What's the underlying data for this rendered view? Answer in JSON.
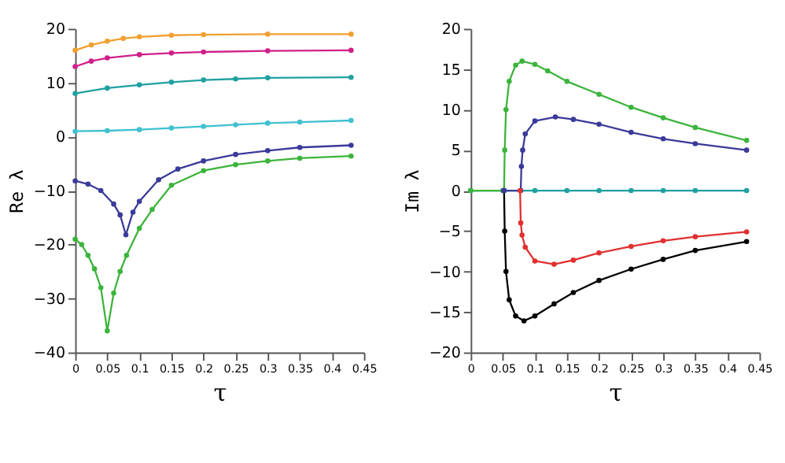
{
  "chart_data": [
    {
      "type": "line",
      "xlabel": "τ",
      "ylabel": "Re λ",
      "xlim": [
        0,
        0.45
      ],
      "ylim": [
        -40,
        20
      ],
      "xticks": [
        0,
        0.05,
        0.1,
        0.15,
        0.2,
        0.25,
        0.3,
        0.35,
        0.4,
        0.45
      ],
      "yticks": [
        -40,
        -30,
        -20,
        -10,
        0,
        10,
        20
      ],
      "grid": false,
      "marker": "circle",
      "line_style": "solid",
      "series": [
        {
          "color": "#f0a030",
          "x": [
            0,
            0.025,
            0.05,
            0.075,
            0.1,
            0.15,
            0.2,
            0.3,
            0.43
          ],
          "values": [
            16,
            17,
            17.7,
            18.2,
            18.5,
            18.8,
            18.9,
            19,
            19
          ]
        },
        {
          "color": "#d0208a",
          "x": [
            0,
            0.025,
            0.05,
            0.1,
            0.15,
            0.2,
            0.3,
            0.43
          ],
          "values": [
            13,
            14,
            14.6,
            15.2,
            15.5,
            15.7,
            15.9,
            16
          ]
        },
        {
          "color": "#20a0a0",
          "x": [
            0,
            0.05,
            0.1,
            0.15,
            0.2,
            0.25,
            0.3,
            0.43
          ],
          "values": [
            8,
            9,
            9.6,
            10.1,
            10.5,
            10.7,
            10.9,
            11
          ]
        },
        {
          "color": "#40c0d0",
          "x": [
            0,
            0.05,
            0.1,
            0.15,
            0.2,
            0.25,
            0.3,
            0.35,
            0.43
          ],
          "values": [
            1,
            1.1,
            1.3,
            1.6,
            1.9,
            2.2,
            2.5,
            2.7,
            3
          ]
        },
        {
          "color": "#3a3a9a",
          "x": [
            0,
            0.02,
            0.04,
            0.06,
            0.07,
            0.079,
            0.09,
            0.1,
            0.13,
            0.16,
            0.2,
            0.25,
            0.3,
            0.35,
            0.43
          ],
          "values": [
            -8.2,
            -8.8,
            -10,
            -12.5,
            -14.5,
            -18.2,
            -14,
            -12,
            -8,
            -6,
            -4.5,
            -3.3,
            -2.6,
            -2,
            -1.6
          ]
        },
        {
          "color": "#3cb43c",
          "x": [
            0,
            0.01,
            0.02,
            0.03,
            0.04,
            0.05,
            0.06,
            0.07,
            0.08,
            0.1,
            0.12,
            0.15,
            0.2,
            0.25,
            0.3,
            0.35,
            0.43
          ],
          "values": [
            -19,
            -20,
            -22,
            -24.5,
            -28,
            -36,
            -29,
            -25,
            -22,
            -17,
            -13.5,
            -9,
            -6.3,
            -5.2,
            -4.5,
            -4,
            -3.6
          ]
        }
      ]
    },
    {
      "type": "line",
      "xlabel": "τ",
      "ylabel": "Im λ",
      "xlim": [
        0,
        0.45
      ],
      "ylim": [
        -20,
        20
      ],
      "xticks": [
        0,
        0.05,
        0.1,
        0.15,
        0.2,
        0.25,
        0.3,
        0.35,
        0.4,
        0.45
      ],
      "yticks": [
        -20,
        -15,
        -10,
        -5,
        0,
        5,
        10,
        15,
        20
      ],
      "grid": false,
      "marker": "circle",
      "line_style": "solid",
      "series": [
        {
          "color": "#20a0a0",
          "x": [
            0,
            0.05,
            0.1,
            0.15,
            0.2,
            0.25,
            0.3,
            0.35,
            0.43
          ],
          "values": [
            0,
            0,
            0,
            0,
            0,
            0,
            0,
            0,
            0
          ]
        },
        {
          "color": "#3cb43c",
          "x": [
            0,
            0.052,
            0.053,
            0.055,
            0.06,
            0.07,
            0.08,
            0.1,
            0.12,
            0.15,
            0.2,
            0.25,
            0.3,
            0.35,
            0.43
          ],
          "values": [
            0,
            0,
            5,
            10,
            13.5,
            15.5,
            16,
            15.6,
            14.8,
            13.5,
            11.9,
            10.3,
            9,
            7.8,
            6.2
          ]
        },
        {
          "color": "#000000",
          "x": [
            0.052,
            0.053,
            0.055,
            0.06,
            0.07,
            0.083,
            0.1,
            0.13,
            0.16,
            0.2,
            0.25,
            0.3,
            0.35,
            0.43
          ],
          "values": [
            0,
            -5,
            -10,
            -13.5,
            -15.5,
            -16.1,
            -15.5,
            -14,
            -12.6,
            -11.1,
            -9.7,
            -8.5,
            -7.4,
            -6.3
          ]
        },
        {
          "color": "#3a3a9a",
          "x": [
            0.052,
            0.078,
            0.079,
            0.081,
            0.085,
            0.1,
            0.132,
            0.16,
            0.2,
            0.25,
            0.3,
            0.35,
            0.43
          ],
          "values": [
            0,
            0,
            3,
            5,
            7,
            8.6,
            9.1,
            8.8,
            8.2,
            7.2,
            6.4,
            5.8,
            5
          ]
        },
        {
          "color": "#e03030",
          "x": [
            0.077,
            0.078,
            0.08,
            0.085,
            0.1,
            0.13,
            0.16,
            0.2,
            0.25,
            0.3,
            0.35,
            0.43
          ],
          "values": [
            0,
            -4,
            -5.5,
            -7,
            -8.7,
            -9.1,
            -8.6,
            -7.7,
            -6.9,
            -6.2,
            -5.7,
            -5.1
          ]
        }
      ]
    }
  ]
}
